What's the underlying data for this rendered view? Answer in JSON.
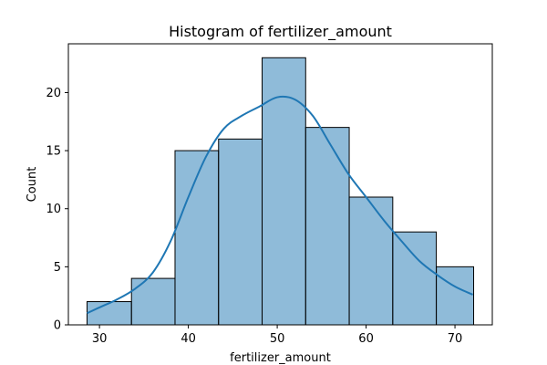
{
  "chart_data": {
    "type": "bar",
    "title": "Histogram of fertilizer_amount",
    "xlabel": "fertilizer_amount",
    "ylabel": "Count",
    "xlim": [
      26.5,
      74.2
    ],
    "ylim": [
      0,
      24.2
    ],
    "xticks": [
      30,
      40,
      50,
      60,
      70
    ],
    "yticks": [
      0,
      5,
      10,
      15,
      20
    ],
    "grid": false,
    "bins": [
      {
        "start": 28.6,
        "end": 33.6,
        "count": 2
      },
      {
        "start": 33.6,
        "end": 38.5,
        "count": 4
      },
      {
        "start": 38.5,
        "end": 43.4,
        "count": 15
      },
      {
        "start": 43.4,
        "end": 48.3,
        "count": 16
      },
      {
        "start": 48.3,
        "end": 53.2,
        "count": 23
      },
      {
        "start": 53.2,
        "end": 58.1,
        "count": 17
      },
      {
        "start": 58.1,
        "end": 63.0,
        "count": 11
      },
      {
        "start": 63.0,
        "end": 67.9,
        "count": 8
      },
      {
        "start": 67.9,
        "end": 72.1,
        "count": 5
      }
    ],
    "kde": {
      "x": [
        28.6,
        30,
        32,
        34,
        36,
        38,
        40,
        42,
        44,
        46,
        48,
        50,
        52,
        54,
        56,
        58,
        60,
        62,
        64,
        66,
        68,
        70,
        72
      ],
      "y": [
        1.0,
        1.5,
        2.2,
        3.1,
        4.5,
        7.2,
        11.0,
        14.5,
        16.9,
        18.0,
        18.8,
        19.6,
        19.4,
        18.0,
        15.5,
        13.0,
        11.0,
        9.0,
        7.2,
        5.5,
        4.3,
        3.3,
        2.6
      ]
    },
    "colors": {
      "bar": "#1f77b4",
      "line": "#1f77b4"
    }
  }
}
